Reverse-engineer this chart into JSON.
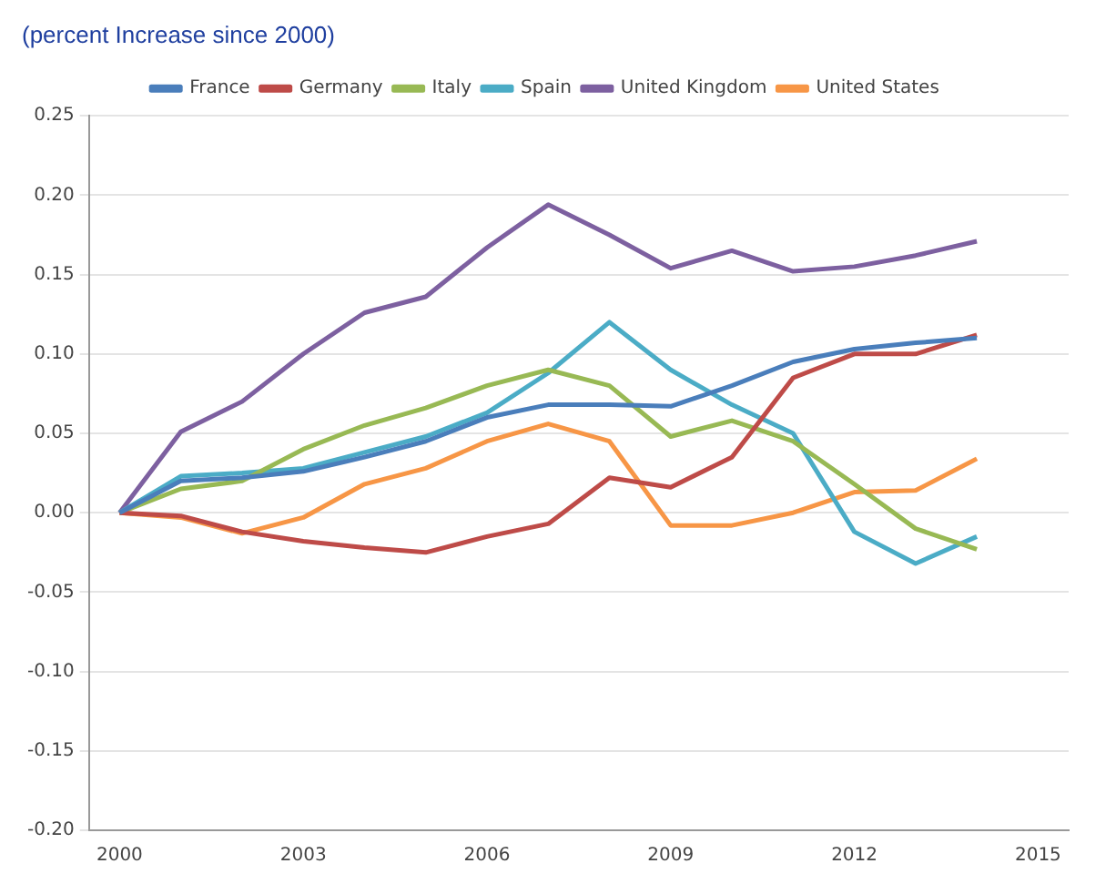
{
  "chart_data": {
    "type": "line",
    "title": "(percent Increase since 2000)",
    "x": [
      2000,
      2001,
      2002,
      2003,
      2004,
      2005,
      2006,
      2007,
      2008,
      2009,
      2010,
      2011,
      2012,
      2013,
      2014
    ],
    "series": [
      {
        "name": "France",
        "color": "#4a7ebb",
        "values": [
          0,
          0.02,
          0.022,
          0.026,
          0.035,
          0.045,
          0.06,
          0.068,
          0.068,
          0.067,
          0.08,
          0.095,
          0.103,
          0.107,
          0.11
        ]
      },
      {
        "name": "Germany",
        "color": "#be4b48",
        "values": [
          0,
          -0.002,
          -0.012,
          -0.018,
          -0.022,
          -0.025,
          -0.015,
          -0.007,
          0.022,
          0.016,
          0.035,
          0.085,
          0.1,
          0.1,
          0.112
        ]
      },
      {
        "name": "Italy",
        "color": "#98b954",
        "values": [
          0,
          0.015,
          0.02,
          0.04,
          0.055,
          0.066,
          0.08,
          0.09,
          0.08,
          0.048,
          0.058,
          0.045,
          0.018,
          -0.01,
          -0.023
        ]
      },
      {
        "name": "Spain",
        "color": "#4bacc6",
        "values": [
          0,
          0.023,
          0.025,
          0.028,
          0.038,
          0.048,
          0.063,
          0.088,
          0.12,
          0.09,
          0.068,
          0.05,
          -0.012,
          -0.032,
          -0.015
        ]
      },
      {
        "name": "United Kingdom",
        "color": "#7d60a0",
        "values": [
          0,
          0.051,
          0.07,
          0.1,
          0.126,
          0.136,
          0.167,
          0.194,
          0.175,
          0.154,
          0.165,
          0.152,
          0.155,
          0.162,
          0.171
        ]
      },
      {
        "name": "United States",
        "color": "#f79646",
        "values": [
          0,
          -0.003,
          -0.013,
          -0.003,
          0.018,
          0.028,
          0.045,
          0.056,
          0.045,
          -0.008,
          -0.008,
          0,
          0.013,
          0.014,
          0.034
        ]
      }
    ],
    "xlim": [
      1999.5,
      2015.5
    ],
    "xticks": [
      2000,
      2003,
      2006,
      2009,
      2012,
      2015
    ],
    "ylim": [
      -0.2,
      0.25
    ],
    "yticks": [
      {
        "value": -0.2,
        "label": "-0.20"
      },
      {
        "value": -0.15,
        "label": "-0.15"
      },
      {
        "value": -0.1,
        "label": "-0.10"
      },
      {
        "value": -0.05,
        "label": "-0.05"
      },
      {
        "value": 0,
        "label": "0.00"
      },
      {
        "value": 0.05,
        "label": "0.05"
      },
      {
        "value": 0.1,
        "label": "0.10"
      },
      {
        "value": 0.15,
        "label": "0.15"
      },
      {
        "value": 0.2,
        "label": "0.20"
      },
      {
        "value": 0.25,
        "label": "0.25"
      }
    ],
    "grid": "y",
    "legend": "top",
    "marker": "none",
    "line_style": "solid"
  }
}
